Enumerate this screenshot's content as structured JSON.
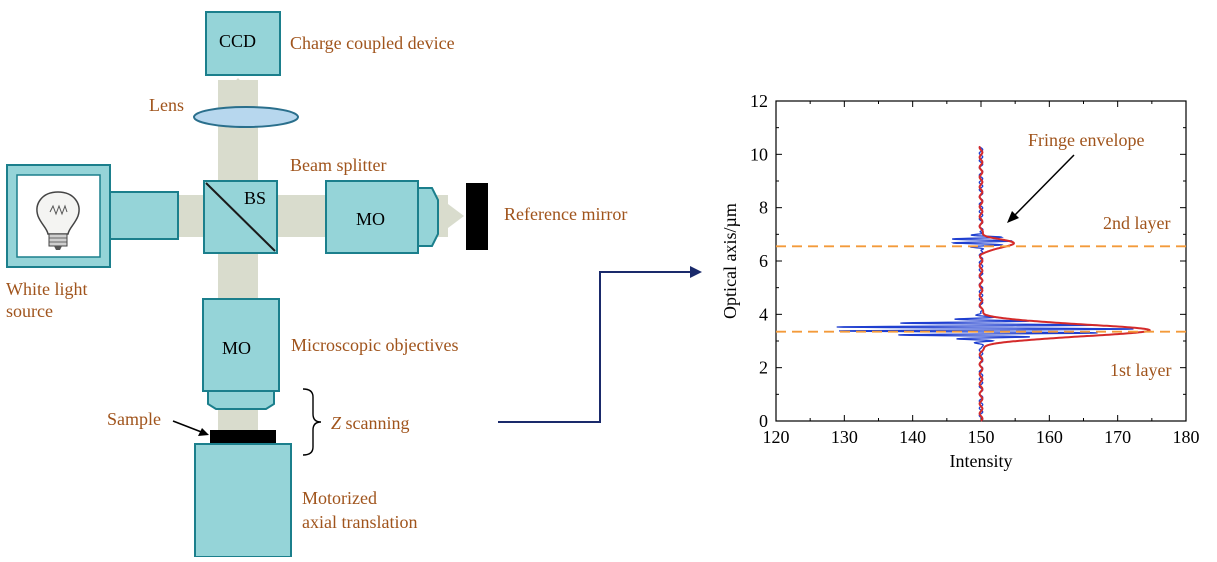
{
  "setup": {
    "ccd_box": "CCD",
    "ccd_label": "Charge coupled device",
    "lens_label": "Lens",
    "beam_splitter_label": "Beam splitter",
    "bs_box": "BS",
    "mo_right_box": "MO",
    "reference_mirror_label": "Reference mirror",
    "light_source_label_line1": "White light",
    "light_source_label_line2": "source",
    "mo_bottom_box": "MO",
    "objectives_label": "Microscopic objectives",
    "sample_label": "Sample",
    "z_scan_italic": "Z",
    "z_scan_rest": " scanning",
    "translation_label_line1": "Motorized",
    "translation_label_line2": "axial translation"
  },
  "colors": {
    "component_fill": "#95d4d8",
    "component_stroke": "#1b7f8c",
    "beam": "#d9dccd",
    "label_text": "#a0541c",
    "signal": "#1f3fd0",
    "envelope": "#d42a2a",
    "layer_line": "#f39a3a",
    "connector": "#1a2a6b"
  },
  "chart_data": {
    "type": "line",
    "xlabel": "Intensity",
    "ylabel": "Optical axis/µm",
    "xlim": [
      120,
      180
    ],
    "ylim": [
      0,
      12
    ],
    "xticks": [
      "120",
      "130",
      "140",
      "150",
      "160",
      "170",
      "180"
    ],
    "yticks": [
      "0",
      "2",
      "4",
      "6",
      "8",
      "10",
      "12"
    ],
    "annotations": {
      "envelope_label": "Fringe envelope",
      "layer2_label": "2nd layer",
      "layer1_label": "1st layer"
    },
    "layers": [
      {
        "name": "2nd layer",
        "y": 6.55
      },
      {
        "name": "1st layer",
        "y": 3.35
      }
    ],
    "envelope_peaks": [
      {
        "center": 3.4,
        "amplitude": 24.5,
        "width": 0.32
      },
      {
        "center": 6.65,
        "amplitude": 4.8,
        "width": 0.22
      }
    ],
    "fringe_peaks": [
      {
        "center": 3.45,
        "amplitude": 22.5,
        "width": 0.28
      },
      {
        "center": 6.75,
        "amplitude": 4.8,
        "width": 0.2
      }
    ],
    "baseline": 150,
    "y_range": [
      0,
      10.3
    ]
  }
}
